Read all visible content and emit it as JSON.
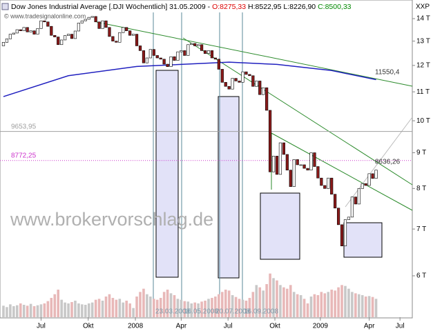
{
  "chart_data": {
    "type": "candlestick",
    "title": "Dow Jones Industrial Average [.DJI  Wöchentlich]",
    "date": "31.05.2009 -",
    "ohlc": {
      "open": "O:8275,33",
      "high": "H:8522,95",
      "low": "L:8226,90",
      "close": "C:8500,33"
    },
    "corner_label": "XXP",
    "copyright": "© www.tradesignalonline.com",
    "watermark": "www.brokervorschlag.de",
    "log_scale": true,
    "up_color": "#ffffff",
    "down_color": "#8b1a1a",
    "open": 12800,
    "values": [
      12950,
      13100,
      13300,
      13350,
      13500,
      13450,
      13600,
      13400,
      13450,
      13300,
      13550,
      13900,
      13850,
      13650,
      13250,
      13180,
      12850,
      13050,
      13240,
      13300,
      13110,
      13440,
      13800,
      13900,
      13970,
      14060,
      14100,
      13850,
      13550,
      13900,
      13600,
      13200,
      13000,
      12950,
      13370,
      13600,
      13450,
      13250,
      13300,
      12800,
      12600,
      12100,
      12300,
      12650,
      12400,
      12300,
      12250,
      12050,
      11950,
      12350,
      12200,
      12550,
      12600,
      12400,
      12850,
      12900,
      12800,
      12850,
      12600,
      12480,
      12600,
      12300,
      12250,
      11850,
      11350,
      11200,
      11100,
      11500,
      11400,
      11350,
      11750,
      11650,
      11600,
      11200,
      11400,
      10900,
      11150,
      10350,
      8450,
      8900,
      8380,
      9300,
      8950,
      8500,
      8050,
      8800,
      8650,
      8650,
      8550,
      8500,
      9000,
      8600,
      8280,
      8080,
      8000,
      8280,
      7850,
      7500,
      7100,
      6620,
      7220,
      7280,
      7780,
      7600,
      8000,
      8130,
      8080,
      8400,
      8270,
      8500
    ],
    "volume": [
      25,
      22,
      28,
      24,
      26,
      30,
      27,
      25,
      29,
      24,
      26,
      28,
      30,
      35,
      42,
      50,
      60,
      38,
      32,
      30,
      33,
      36,
      30,
      28,
      27,
      30,
      32,
      38,
      40,
      36,
      45,
      50,
      42,
      38,
      40,
      32,
      36,
      30,
      20,
      45,
      55,
      62,
      50,
      45,
      40,
      38,
      42,
      55,
      60,
      52,
      48,
      40,
      38,
      35,
      34,
      30,
      32,
      30,
      34,
      36,
      40,
      42,
      45,
      50,
      55,
      60,
      58,
      48,
      44,
      40,
      38,
      36,
      42,
      55,
      70,
      65,
      58,
      72,
      95,
      85,
      80,
      70,
      65,
      62,
      70,
      55,
      50,
      48,
      40,
      30,
      45,
      50,
      48,
      55,
      52,
      55,
      60,
      58,
      65,
      70,
      68,
      62,
      55,
      52,
      50,
      48,
      45,
      46,
      44,
      40
    ],
    "vlim": [
      0,
      105
    ],
    "volume_up_color": "#c8c8c8",
    "volume_down_color": "#e8b8b8",
    "ma": {
      "color": "#1f1fbf",
      "x": [
        0,
        19,
        39,
        66,
        80,
        96,
        109
      ],
      "values": [
        10830,
        11600,
        11960,
        12130,
        12040,
        11800,
        11450
      ]
    },
    "levels": [
      {
        "value": 9653.95,
        "label": "9653,95",
        "color": "#a0a0a0",
        "dash": false
      },
      {
        "value": 8772.25,
        "label": "8772,25",
        "color": "#cc33cc",
        "dash": true
      }
    ],
    "trend_labels": [
      "11550,4",
      "8636,26"
    ],
    "date_labels": [
      "23.03.2008",
      "16.05.2008",
      "20.07.2008",
      "16.09.2008"
    ],
    "xlim": [
      -1.01,
      119.6
    ],
    "xticks": [
      {
        "value": 11,
        "label": "Jul"
      },
      {
        "value": 24.8,
        "label": "Okt"
      },
      {
        "value": 38.6,
        "label": "2008"
      },
      {
        "value": 52,
        "label": "Apr"
      },
      {
        "value": 65.7,
        "label": "Jul"
      },
      {
        "value": 79.4,
        "label": "Okt"
      },
      {
        "value": 92.7,
        "label": "2009"
      },
      {
        "value": 107,
        "label": "Apr"
      },
      {
        "value": 116,
        "label": "Jul"
      }
    ],
    "ylim": [
      5235,
      14290
    ],
    "yticks": [
      {
        "value": 14000,
        "label": "14 T"
      },
      {
        "value": 13000,
        "label": "13 T"
      },
      {
        "value": 12000,
        "label": "12 T"
      },
      {
        "value": 11000,
        "label": "11 T"
      },
      {
        "value": 10000,
        "label": "10 T"
      },
      {
        "value": 9000,
        "label": "9 T"
      },
      {
        "value": 8000,
        "label": "8 T"
      },
      {
        "value": 7000,
        "label": "7 T"
      },
      {
        "value": 6000,
        "label": "6 T"
      }
    ]
  }
}
